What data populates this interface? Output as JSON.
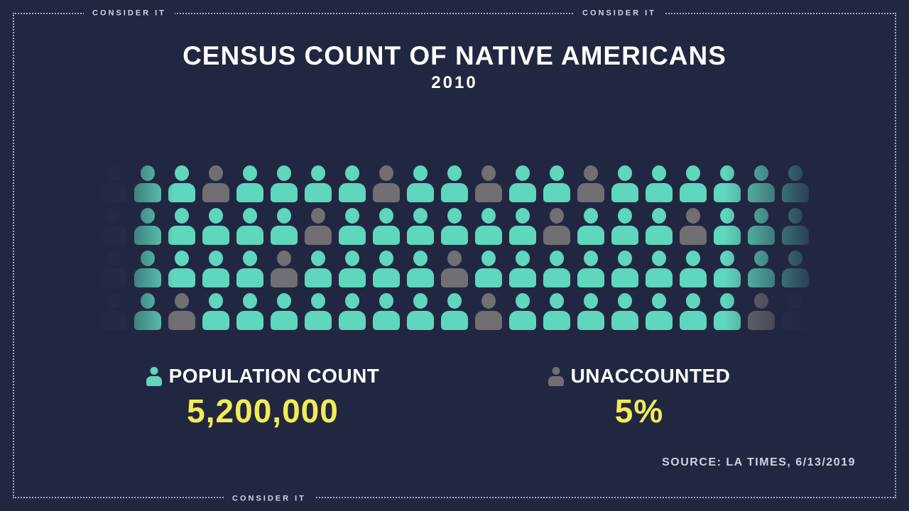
{
  "frame": {
    "brand_label": "CONSIDER IT"
  },
  "header": {
    "title": "CENSUS COUNT OF NATIVE AMERICANS",
    "subtitle": "2010"
  },
  "legend": {
    "population": {
      "label": "POPULATION COUNT",
      "value": "5,200,000"
    },
    "unaccounted": {
      "label": "UNACCOUNTED",
      "value": "5%"
    }
  },
  "source": "SOURCE: LA TIMES, 6/13/2019",
  "colors": {
    "background": "#222741",
    "counted_teal": "#5fd6be",
    "unaccounted_gray": "#716e74",
    "dim_edge": "#2a3149",
    "value_yellow": "#f2ec55",
    "text_white": "#ffffff",
    "border_dots": "#bec5d6"
  },
  "chart_data": {
    "type": "pictogram",
    "title": "CENSUS COUNT OF NATIVE AMERICANS",
    "subtitle": "2010",
    "rows": 4,
    "cols": 21,
    "cell_codes": {
      "t": "counted (teal)",
      "g": "unaccounted (gray)",
      "d": "faded edge icon"
    },
    "grid": [
      "dttgttttgttgttgtttttt",
      "dtttttgttttttgtttgttt",
      "dttttgttttgtttttttttt",
      "dtgttttttttgtttttttgd"
    ],
    "icon_totals": {
      "total": 84,
      "teal": 67,
      "gray": 12,
      "dim": 5
    },
    "series": [
      {
        "name": "POPULATION COUNT",
        "value": "5,200,000",
        "color": "#5fd6be"
      },
      {
        "name": "UNACCOUNTED",
        "value": "5%",
        "color": "#716e74"
      }
    ],
    "source": "SOURCE: LA TIMES, 6/13/2019",
    "layout": {
      "legend_position": "bottom",
      "grid_fade_edges": true
    }
  }
}
